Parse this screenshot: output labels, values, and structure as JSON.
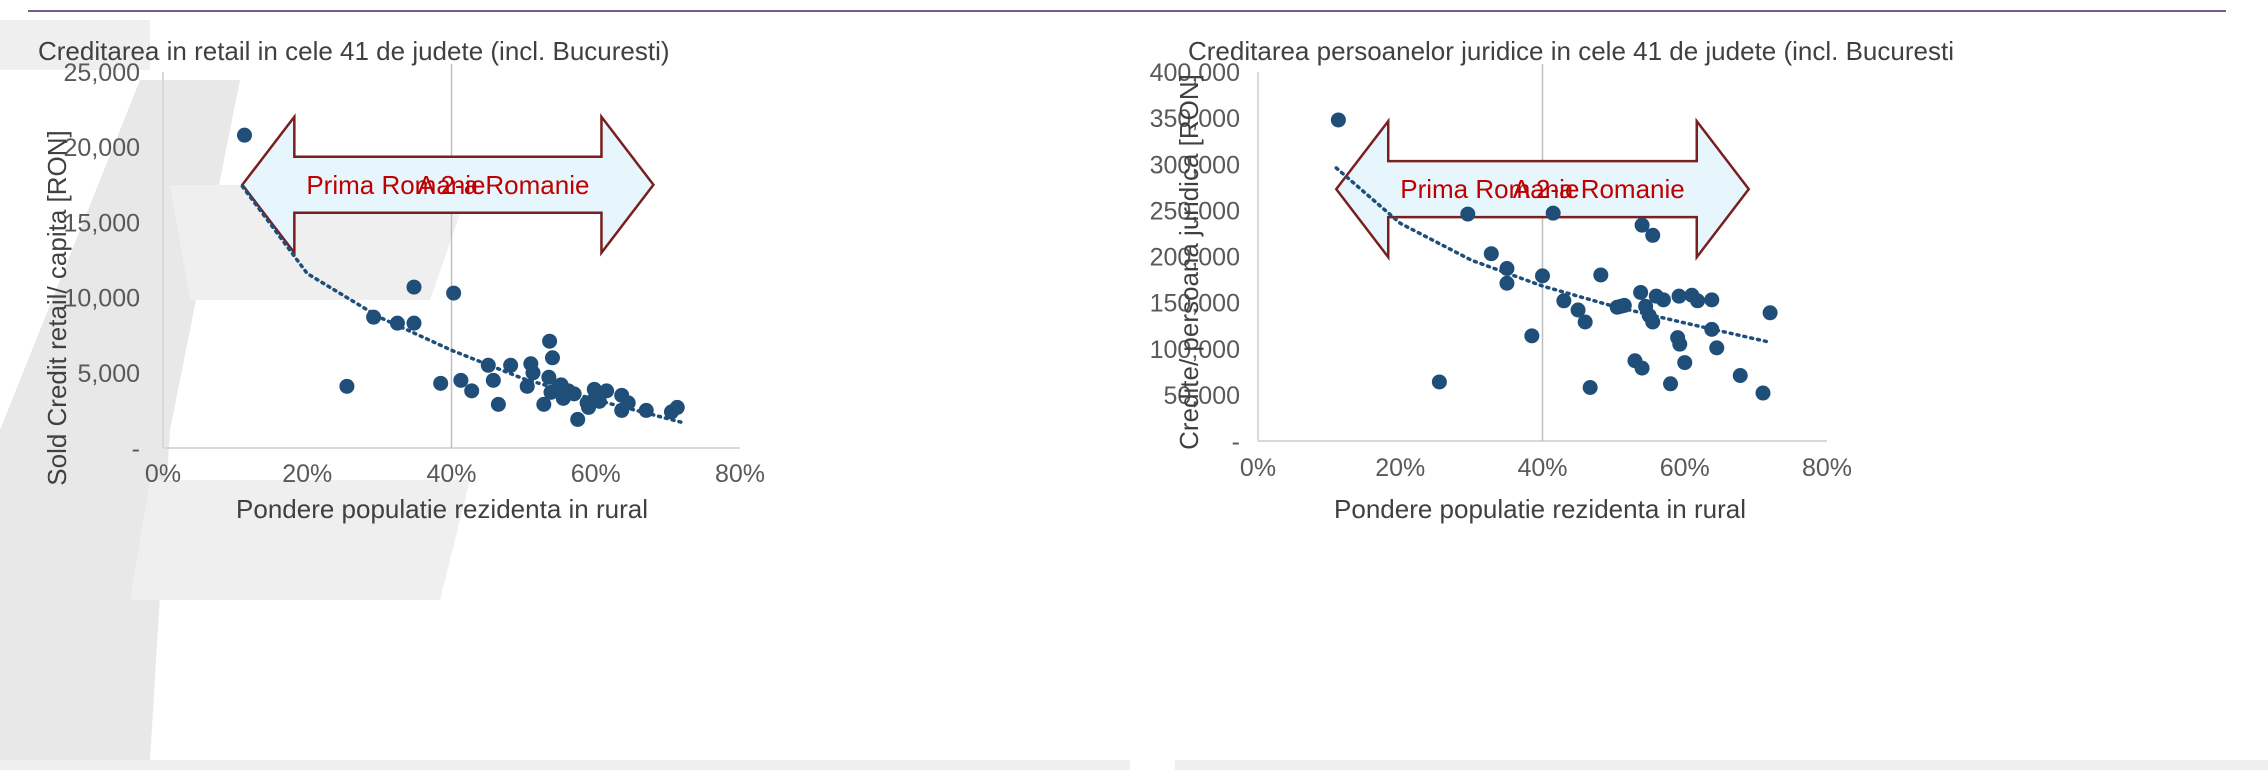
{
  "colors": {
    "marker": "#1f4e79",
    "trend": "#1f4e79",
    "arrow_fill": "#e6f6fc",
    "arrow_stroke": "#7a1f1f",
    "arrow_text": "#c00000",
    "grid": "#d9d9d9",
    "divider": "#7a5a8c"
  },
  "chart_data": [
    {
      "type": "scatter",
      "title": "Creditarea in retail in cele 41 de judete (incl. Bucuresti)",
      "xlabel": "Pondere populatie rezidenta in rural",
      "ylabel": "Sold Credit retail/ capita [RON]",
      "xlim": [
        0,
        0.8
      ],
      "ylim": [
        0,
        25000
      ],
      "x_ticks": [
        "0%",
        "20%",
        "40%",
        "60%",
        "80%"
      ],
      "y_ticks": [
        "-",
        "5,000",
        "10,000",
        "15,000",
        "20,000",
        "25,000"
      ],
      "reference_line_x": 0.4,
      "trendline": {
        "type": "exponential",
        "points": [
          [
            0.11,
            17400
          ],
          [
            0.2,
            11600
          ],
          [
            0.3,
            8700
          ],
          [
            0.4,
            6500
          ],
          [
            0.5,
            4600
          ],
          [
            0.6,
            3200
          ],
          [
            0.72,
            1700
          ]
        ]
      },
      "arrow": {
        "x_from": 0.11,
        "x_to": 0.68,
        "y": 17500,
        "left_label": "Prima Romanie",
        "right_label": "A 2-a Romanie"
      },
      "points": [
        [
          0.113,
          20800
        ],
        [
          0.255,
          4100
        ],
        [
          0.292,
          8700
        ],
        [
          0.325,
          8300
        ],
        [
          0.348,
          10700
        ],
        [
          0.348,
          8300
        ],
        [
          0.385,
          4300
        ],
        [
          0.403,
          10300
        ],
        [
          0.413,
          4500
        ],
        [
          0.428,
          3800
        ],
        [
          0.451,
          5500
        ],
        [
          0.458,
          4500
        ],
        [
          0.465,
          2900
        ],
        [
          0.482,
          5500
        ],
        [
          0.505,
          4100
        ],
        [
          0.51,
          5600
        ],
        [
          0.513,
          5000
        ],
        [
          0.528,
          2900
        ],
        [
          0.535,
          4700
        ],
        [
          0.536,
          7100
        ],
        [
          0.54,
          6000
        ],
        [
          0.538,
          3700
        ],
        [
          0.548,
          4000
        ],
        [
          0.552,
          4200
        ],
        [
          0.555,
          3300
        ],
        [
          0.562,
          3800
        ],
        [
          0.57,
          3600
        ],
        [
          0.575,
          1900
        ],
        [
          0.588,
          3000
        ],
        [
          0.59,
          2700
        ],
        [
          0.598,
          3900
        ],
        [
          0.6,
          3500
        ],
        [
          0.605,
          3100
        ],
        [
          0.615,
          3800
        ],
        [
          0.636,
          3500
        ],
        [
          0.636,
          2500
        ],
        [
          0.645,
          3000
        ],
        [
          0.67,
          2500
        ],
        [
          0.705,
          2400
        ],
        [
          0.713,
          2700
        ]
      ]
    },
    {
      "type": "scatter",
      "title": "Creditarea persoanelor juridice in cele 41 de judete (incl. Bucuresti",
      "xlabel": "Pondere populatie rezidenta in rural",
      "ylabel": "Credite/ persoana juridica [RON]",
      "xlim": [
        0,
        0.8
      ],
      "ylim": [
        0,
        400000
      ],
      "x_ticks": [
        "0%",
        "20%",
        "40%",
        "60%",
        "80%"
      ],
      "y_ticks": [
        "-",
        "50,000",
        "100,000",
        "150,000",
        "200,000",
        "250,000",
        "300,000",
        "350,000",
        "400,000"
      ],
      "reference_line_x": 0.4,
      "trendline": {
        "type": "exponential",
        "points": [
          [
            0.11,
            296000
          ],
          [
            0.2,
            236000
          ],
          [
            0.3,
            196000
          ],
          [
            0.4,
            168000
          ],
          [
            0.5,
            146000
          ],
          [
            0.6,
            128000
          ],
          [
            0.72,
            107000
          ]
        ]
      },
      "arrow": {
        "x_from": 0.11,
        "x_to": 0.69,
        "y": 273000,
        "left_label": "Prima Romanie",
        "right_label": "A 2-a Romanie"
      },
      "points": [
        [
          0.113,
          348000
        ],
        [
          0.255,
          64000
        ],
        [
          0.295,
          246000
        ],
        [
          0.328,
          203000
        ],
        [
          0.35,
          187000
        ],
        [
          0.35,
          171000
        ],
        [
          0.385,
          114000
        ],
        [
          0.4,
          179000
        ],
        [
          0.415,
          247000
        ],
        [
          0.43,
          152000
        ],
        [
          0.45,
          142000
        ],
        [
          0.46,
          129000
        ],
        [
          0.467,
          58000
        ],
        [
          0.482,
          180000
        ],
        [
          0.505,
          145000
        ],
        [
          0.51,
          146000
        ],
        [
          0.515,
          147000
        ],
        [
          0.53,
          87000
        ],
        [
          0.538,
          161000
        ],
        [
          0.54,
          234000
        ],
        [
          0.54,
          79000
        ],
        [
          0.545,
          146000
        ],
        [
          0.55,
          136000
        ],
        [
          0.555,
          129000
        ],
        [
          0.555,
          223000
        ],
        [
          0.56,
          157000
        ],
        [
          0.57,
          153000
        ],
        [
          0.58,
          62000
        ],
        [
          0.592,
          157000
        ],
        [
          0.59,
          112000
        ],
        [
          0.593,
          105000
        ],
        [
          0.6,
          85000
        ],
        [
          0.61,
          158000
        ],
        [
          0.618,
          152000
        ],
        [
          0.638,
          153000
        ],
        [
          0.638,
          121000
        ],
        [
          0.645,
          101000
        ],
        [
          0.678,
          71000
        ],
        [
          0.71,
          52000
        ],
        [
          0.72,
          139000
        ]
      ]
    }
  ]
}
